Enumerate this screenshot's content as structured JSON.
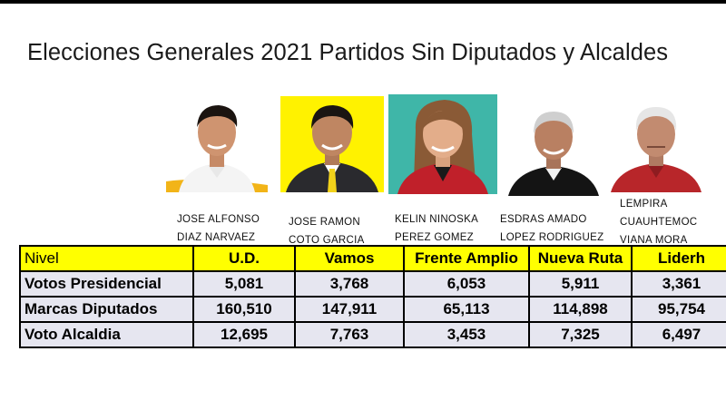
{
  "title": "Elecciones Generales 2021 Partidos Sin Diputados y Alcaldes",
  "candidates": [
    {
      "line1": "JOSE ALFONSO",
      "line2": "DIAZ NARVAEZ",
      "photo_bg": "#ffffff",
      "accent": "#f2b418"
    },
    {
      "line1": "JOSE RAMON",
      "line2": "COTO GARCIA",
      "photo_bg": "#fff200",
      "accent": "#222222"
    },
    {
      "line1": "KELIN NINOSKA",
      "line2": "PEREZ GOMEZ",
      "photo_bg": "#3fb6a8",
      "accent": "#c0202a"
    },
    {
      "line1": "ESDRAS AMADO",
      "line2": "LOPEZ RODRIGUEZ",
      "photo_bg": "#ffffff",
      "accent": "#111111"
    },
    {
      "line1": "LEMPIRA",
      "line2": "CUAUHTEMOC",
      "line3": "VIANA MORA",
      "photo_bg": "#ffffff",
      "accent": "#b8262a"
    }
  ],
  "table": {
    "header": [
      "Nivel",
      "U.D.",
      "Vamos",
      "Frente Amplio",
      "Nueva Ruta",
      "Liderh"
    ],
    "rows": [
      {
        "label": "Votos Presidencial",
        "values": [
          "5,081",
          "3,768",
          "6,053",
          "5,911",
          "3,361"
        ]
      },
      {
        "label": "Marcas Diputados",
        "values": [
          "160,510",
          "147,911",
          "65,113",
          "114,898",
          "95,754"
        ]
      },
      {
        "label": "Voto Alcaldia",
        "values": [
          "12,695",
          "7,763",
          "3,453",
          "7,325",
          "6,497"
        ]
      }
    ]
  },
  "colors": {
    "header_bg": "#ffff00",
    "row_bg": "#e6e6f0",
    "border": "#000000"
  }
}
